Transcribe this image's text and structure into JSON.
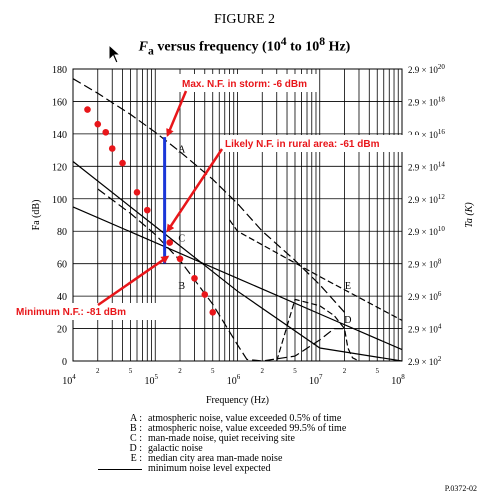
{
  "figure_label": "FIGURE 2",
  "title_symbol": "F",
  "title_subscript": "a",
  "title_rest": " versus frequency (10",
  "title_exp1": "4",
  "title_mid": " to 10",
  "title_exp2": "8",
  "title_end": " Hz)",
  "code": "P.0372-02",
  "chart_data": {
    "type": "line",
    "xlabel": "Frequency (Hz)",
    "ylabel": "Fa (dB)",
    "ylabel_right": "Ta (K)",
    "xscale": "log",
    "xlim": [
      10000,
      100000000
    ],
    "ylim": [
      0,
      180
    ],
    "yticks": [
      0,
      20,
      40,
      60,
      80,
      100,
      120,
      140,
      160,
      180
    ],
    "xtick_labels": [
      {
        "text": "10",
        "exp": "4"
      },
      {
        "text": "10",
        "exp": "5"
      },
      {
        "text": "10",
        "exp": "6"
      },
      {
        "text": "10",
        "exp": "7"
      },
      {
        "text": "10",
        "exp": "8"
      }
    ],
    "minor_tick_labels": [
      "2",
      "5"
    ],
    "right_ticks": [
      {
        "mant": "2.9 × 10",
        "exp": "20"
      },
      {
        "mant": "2.9 × 10",
        "exp": "18"
      },
      {
        "mant": "2.9 × 10",
        "exp": "16"
      },
      {
        "mant": "2.9 × 10",
        "exp": "14"
      },
      {
        "mant": "2.9 × 10",
        "exp": "12"
      },
      {
        "mant": "2.9 × 10",
        "exp": "10"
      },
      {
        "mant": "2.9 × 10",
        "exp": "8"
      },
      {
        "mant": "2.9 × 10",
        "exp": "6"
      },
      {
        "mant": "2.9 × 10",
        "exp": "4"
      },
      {
        "mant": "2.9 × 10",
        "exp": "2"
      }
    ],
    "series": [
      {
        "name": "A",
        "style": "long-dash",
        "x": [
          10000,
          20000,
          50000,
          100000,
          200000,
          500000,
          1000000,
          2000000,
          5000000,
          10000000,
          20000000
        ],
        "y": [
          174,
          165,
          152,
          141,
          129,
          112,
          97,
          80,
          62,
          47,
          30
        ]
      },
      {
        "name": "B",
        "style": "long-dash",
        "x": [
          20000,
          50000,
          100000,
          200000,
          500000,
          1000000,
          1300000,
          2000000,
          5000000,
          10000000,
          15000000,
          20000000
        ],
        "y": [
          106,
          91,
          78,
          62,
          35,
          10,
          1,
          0,
          3,
          13,
          20,
          20
        ]
      },
      {
        "name": "C",
        "style": "solid",
        "x": [
          10000,
          100000,
          1000000,
          10000000,
          100000000
        ],
        "y": [
          95,
          73,
          51,
          29,
          7
        ]
      },
      {
        "name": "D",
        "style": "dash",
        "x": [
          3000000,
          5000000,
          10000000,
          15000000,
          20000000,
          22000000,
          25000000,
          30000000
        ],
        "y": [
          0,
          38,
          34,
          28,
          20,
          8,
          2,
          0
        ]
      },
      {
        "name": "E",
        "style": "dash",
        "x": [
          800000,
          1000000,
          10000000,
          100000000
        ],
        "y": [
          87,
          80,
          52,
          25
        ]
      },
      {
        "name": "minimum noise level expected",
        "style": "solid",
        "x": [
          10000,
          100000,
          1000000,
          10000000,
          100000000
        ],
        "y": [
          123,
          83,
          43,
          8,
          0
        ]
      }
    ],
    "points": {
      "color": "#e8161a",
      "x": [
        15000,
        20000,
        25000,
        30000,
        40000,
        60000,
        80000,
        150000,
        200000,
        300000,
        400000,
        500000
      ],
      "y": [
        155,
        146,
        141,
        131,
        122,
        104,
        93,
        73,
        63,
        51,
        41,
        30
      ]
    },
    "marker_line": {
      "color": "#1a36d8",
      "x": 130000,
      "y": [
        138,
        60
      ]
    },
    "curve_labels": [
      {
        "text": "A",
        "x": 210000,
        "y": 131
      },
      {
        "text": "C",
        "x": 210000,
        "y": 76
      },
      {
        "text": "B",
        "x": 210000,
        "y": 47
      },
      {
        "text": "E",
        "x": 22000000,
        "y": 47
      },
      {
        "text": "D",
        "x": 22000000,
        "y": 26
      }
    ],
    "annotations": [
      {
        "text": "Max. N.F. in storm: -6 dBm",
        "color": "#e8161a",
        "target_x": 130000,
        "target_y": 138
      },
      {
        "text": "Likely N.F. in rural area: -61 dBm",
        "color": "#e8161a",
        "target_x": 130000,
        "target_y": 79
      },
      {
        "text": "Minimum N.F.: -81 dBm",
        "color": "#e8161a",
        "target_x": 130000,
        "target_y": 63
      }
    ],
    "legend": [
      {
        "key": "A :",
        "text": "atmospheric noise, value exceeded 0.5% of time"
      },
      {
        "key": "B :",
        "text": "atmospheric noise, value exceeded 99.5% of time"
      },
      {
        "key": "C :",
        "text": "man-made noise, quiet receiving site"
      },
      {
        "key": "D :",
        "text": "galactic noise"
      },
      {
        "key": "E :",
        "text": "median city area man-made noise"
      },
      {
        "key": "",
        "text": "minimum noise level expected"
      }
    ]
  }
}
